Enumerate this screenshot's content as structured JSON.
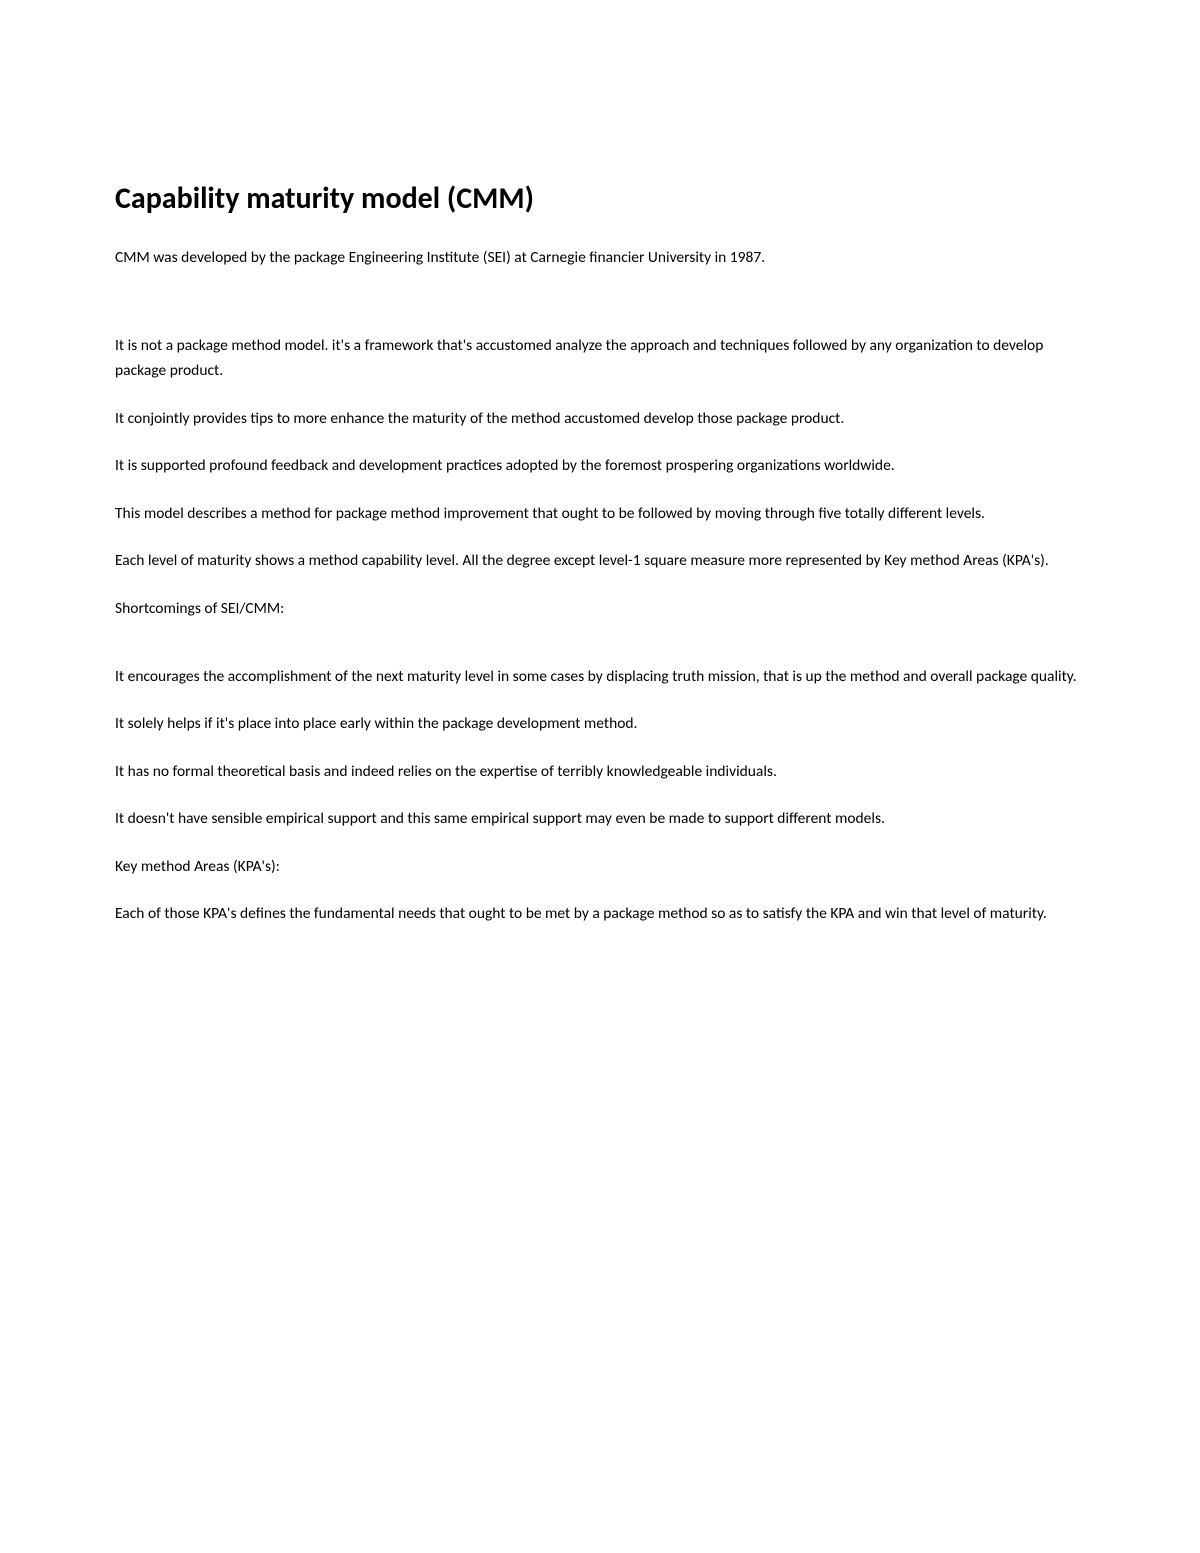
{
  "document": {
    "title": "Capability maturity model (CMM)",
    "paragraphs": [
      "CMM was developed by the package Engineering Institute (SEI) at Carnegie financier University in 1987.",
      "It is not a package method model. it's a framework that's accustomed analyze the approach and techniques followed by any organization to develop package product.",
      "It conjointly provides tips to more enhance the maturity of the method accustomed develop those package product.",
      "It is supported profound feedback and development practices adopted by the foremost prospering organizations worldwide.",
      "This model describes a method for package method improvement that ought to be followed by moving through five totally different levels.",
      "Each level of maturity shows a method capability level. All the degree except level-1 square measure more represented by Key method Areas (KPA's).",
      "Shortcomings of SEI/CMM:",
      "It encourages the accomplishment of the next maturity level in some cases by displacing truth mission, that is up the method and overall package quality.",
      "It solely helps if it's place into place early within the package development method.",
      "It has no formal theoretical basis and indeed relies on the expertise of terribly knowledgeable individuals.",
      "It doesn't have sensible empirical support and this same empirical support may even be made to support different models.",
      "Key method Areas (KPA's):",
      "Each of those KPA's defines the fundamental needs that ought to be met by a package method so as to satisfy the KPA and win that level of maturity."
    ],
    "title_fontsize": 30,
    "body_fontsize": 15.5,
    "text_color": "#000000",
    "background_color": "#ffffff"
  }
}
